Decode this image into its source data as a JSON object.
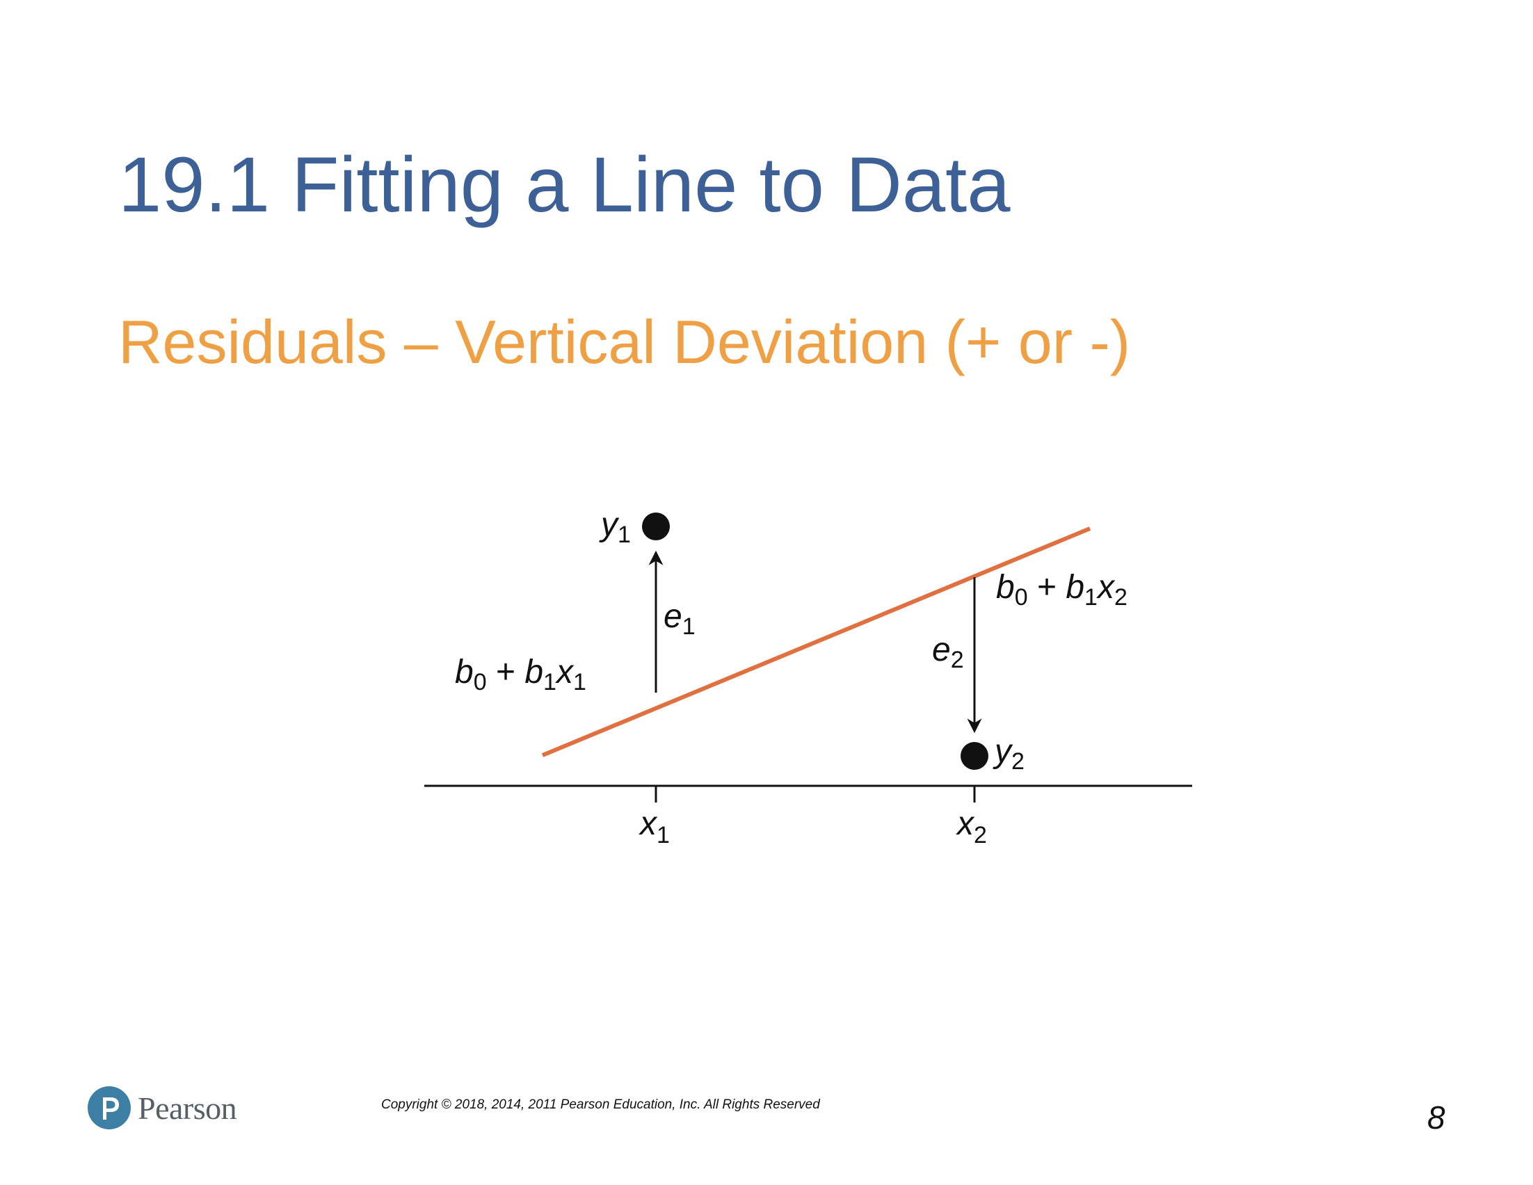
{
  "slide": {
    "title": "19.1 Fitting a Line to Data",
    "subtitle": "Residuals – Vertical Deviation (+ or -)"
  },
  "diagram": {
    "point_1": {
      "y_label": "y",
      "y_sub": "1",
      "x_label": "x",
      "x_sub": "1"
    },
    "point_2": {
      "y_label": "y",
      "y_sub": "2",
      "x_label": "x",
      "x_sub": "2"
    },
    "residual_1": {
      "label": "e",
      "sub": "1"
    },
    "residual_2": {
      "label": "e",
      "sub": "2"
    },
    "fit_1": {
      "b0": "b",
      "b0_sub": "0",
      "plus": " + ",
      "b1": "b",
      "b1_sub": "1",
      "x": "x",
      "x_sub": "1"
    },
    "fit_2": {
      "b0": "b",
      "b0_sub": "0",
      "plus": " + ",
      "b1": "b",
      "b1_sub": "1",
      "x": "x",
      "x_sub": "2"
    },
    "line_color": "#e07040",
    "point_color": "#111111"
  },
  "footer": {
    "logo_text": "Pearson",
    "copyright": "Copyright © 2018, 2014, 2011 Pearson Education, Inc. All Rights Reserved",
    "page_number": "8"
  },
  "colors": {
    "title": "#3d6096",
    "subtitle": "#f0a044",
    "logo": "#3e7fa6"
  }
}
